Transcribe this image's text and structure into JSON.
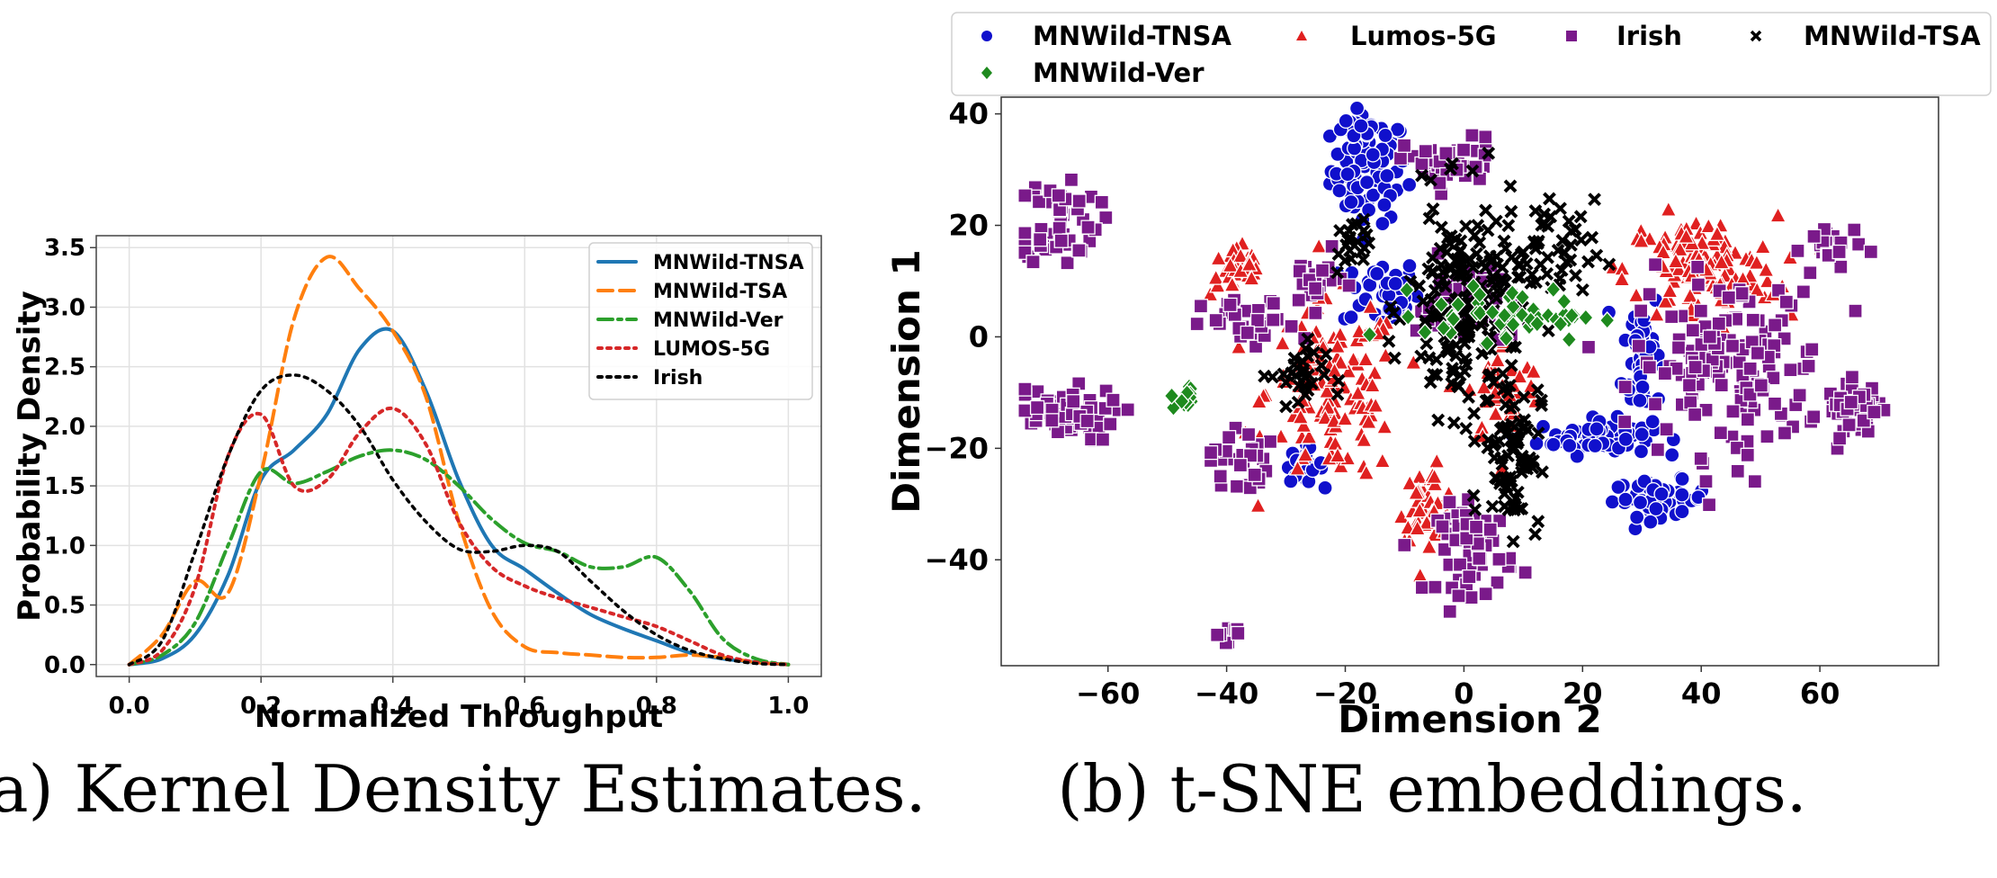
{
  "chart_data": [
    {
      "type": "line",
      "panel": "a",
      "caption": "(a) Kernel Density Estimates.",
      "xlabel": "Normalized Throughput",
      "ylabel": "Probability Density",
      "xlim": [
        -0.05,
        1.05
      ],
      "ylim": [
        -0.1,
        3.6
      ],
      "xticks": [
        0.0,
        0.2,
        0.4,
        0.6,
        0.8,
        1.0
      ],
      "xtick_labels": [
        "0.0",
        "0.2",
        "0.4",
        "0.6",
        "0.8",
        "1.0"
      ],
      "yticks": [
        0.0,
        0.5,
        1.0,
        1.5,
        2.0,
        2.5,
        3.0,
        3.5
      ],
      "ytick_labels": [
        "0.0",
        "0.5",
        "1.0",
        "1.5",
        "2.0",
        "2.5",
        "3.0",
        "3.5"
      ],
      "grid": true,
      "legend_position": "top-right",
      "series": [
        {
          "name": "MNWild-TNSA",
          "color": "#1f77b4",
          "style": "solid",
          "x": [
            0.0,
            0.05,
            0.1,
            0.15,
            0.2,
            0.25,
            0.3,
            0.35,
            0.4,
            0.45,
            0.5,
            0.55,
            0.6,
            0.65,
            0.7,
            0.75,
            0.8,
            0.85,
            0.9,
            0.95,
            1.0
          ],
          "y": [
            0.0,
            0.05,
            0.25,
            0.75,
            1.55,
            1.8,
            2.1,
            2.65,
            2.8,
            2.3,
            1.55,
            1.0,
            0.8,
            0.6,
            0.42,
            0.3,
            0.2,
            0.1,
            0.05,
            0.02,
            0.0
          ]
        },
        {
          "name": "MNWild-TSA",
          "color": "#ff7f0e",
          "style": "dashed",
          "x": [
            0.0,
            0.05,
            0.1,
            0.15,
            0.2,
            0.25,
            0.3,
            0.35,
            0.4,
            0.45,
            0.5,
            0.55,
            0.6,
            0.65,
            0.7,
            0.75,
            0.8,
            0.85,
            0.9,
            0.95,
            1.0
          ],
          "y": [
            0.0,
            0.25,
            0.7,
            0.6,
            1.6,
            2.9,
            3.42,
            3.15,
            2.8,
            2.25,
            1.2,
            0.45,
            0.15,
            0.1,
            0.08,
            0.06,
            0.06,
            0.08,
            0.06,
            0.02,
            0.0
          ]
        },
        {
          "name": "MNWild-Ver",
          "color": "#2ca02c",
          "style": "dashdot",
          "x": [
            0.0,
            0.05,
            0.1,
            0.15,
            0.2,
            0.25,
            0.3,
            0.35,
            0.4,
            0.45,
            0.5,
            0.55,
            0.6,
            0.65,
            0.7,
            0.75,
            0.8,
            0.85,
            0.9,
            0.95,
            1.0
          ],
          "y": [
            0.0,
            0.08,
            0.35,
            1.0,
            1.62,
            1.52,
            1.62,
            1.75,
            1.8,
            1.72,
            1.5,
            1.22,
            1.02,
            0.95,
            0.82,
            0.82,
            0.9,
            0.62,
            0.22,
            0.05,
            0.0
          ]
        },
        {
          "name": "LUMOS-5G",
          "color": "#d62728",
          "style": "dotted",
          "x": [
            0.0,
            0.05,
            0.1,
            0.15,
            0.2,
            0.25,
            0.3,
            0.35,
            0.4,
            0.45,
            0.5,
            0.55,
            0.6,
            0.65,
            0.7,
            0.75,
            0.8,
            0.85,
            0.9,
            0.95,
            1.0
          ],
          "y": [
            0.0,
            0.12,
            0.65,
            1.75,
            2.1,
            1.5,
            1.55,
            1.95,
            2.15,
            1.85,
            1.2,
            0.82,
            0.66,
            0.56,
            0.48,
            0.4,
            0.32,
            0.2,
            0.08,
            0.02,
            0.0
          ]
        },
        {
          "name": "Irish",
          "color": "#000000",
          "style": "dotted",
          "x": [
            0.0,
            0.05,
            0.1,
            0.15,
            0.2,
            0.25,
            0.3,
            0.35,
            0.4,
            0.45,
            0.5,
            0.55,
            0.6,
            0.65,
            0.7,
            0.75,
            0.8,
            0.85,
            0.9,
            0.95,
            1.0
          ],
          "y": [
            0.0,
            0.2,
            0.95,
            1.75,
            2.3,
            2.43,
            2.3,
            2.0,
            1.55,
            1.2,
            0.97,
            0.95,
            1.0,
            0.95,
            0.7,
            0.45,
            0.25,
            0.12,
            0.05,
            0.01,
            0.0
          ]
        }
      ]
    },
    {
      "type": "scatter",
      "panel": "b",
      "caption": "(b) t-SNE embeddings.",
      "xlabel": "Dimension 2",
      "ylabel": "Dimension 1",
      "xlim": [
        -78,
        80
      ],
      "ylim": [
        -59,
        43
      ],
      "xticks": [
        -60,
        -40,
        -20,
        0,
        20,
        40,
        60
      ],
      "xtick_labels": [
        "−60",
        "−40",
        "−20",
        "0",
        "20",
        "40",
        "60"
      ],
      "yticks": [
        40,
        20,
        0,
        -20,
        -40
      ],
      "ytick_labels": [
        "40",
        "20",
        "0",
        "−20",
        "−40"
      ],
      "grid": false,
      "legend_position": "top",
      "series": [
        {
          "name": "MNWild-TNSA",
          "color": "#1010cc",
          "marker": "circle",
          "clusters": [
            {
              "x": -16,
              "y": 30,
              "sx": 4,
              "sy": 6,
              "n": 80
            },
            {
              "x": -18,
              "y": 37,
              "sx": 2,
              "sy": 1,
              "n": 20
            },
            {
              "x": -14,
              "y": 8,
              "sx": 4,
              "sy": 4,
              "n": 40
            },
            {
              "x": 30,
              "y": -3,
              "sx": 2,
              "sy": 8,
              "n": 50
            },
            {
              "x": 22,
              "y": -18,
              "sx": 6,
              "sy": 2,
              "n": 60
            },
            {
              "x": 33,
              "y": -29,
              "sx": 5,
              "sy": 2,
              "n": 50
            },
            {
              "x": -27,
              "y": -23,
              "sx": 2,
              "sy": 2,
              "n": 20
            }
          ]
        },
        {
          "name": "Lumos-5G",
          "color": "#e02020",
          "marker": "triangle",
          "clusters": [
            {
              "x": -38,
              "y": 12,
              "sx": 3,
              "sy": 3,
              "n": 35
            },
            {
              "x": -22,
              "y": -10,
              "sx": 7,
              "sy": 10,
              "n": 130
            },
            {
              "x": -6,
              "y": -30,
              "sx": 3,
              "sy": 4,
              "n": 40
            },
            {
              "x": 40,
              "y": 12,
              "sx": 8,
              "sy": 6,
              "n": 120
            },
            {
              "x": 7,
              "y": -10,
              "sx": 4,
              "sy": 6,
              "n": 40
            }
          ]
        },
        {
          "name": "Irish",
          "color": "#7a1a8a",
          "marker": "square",
          "clusters": [
            {
              "x": -68,
              "y": 21,
              "sx": 4,
              "sy": 5,
              "n": 50
            },
            {
              "x": -68,
              "y": -14,
              "sx": 6,
              "sy": 3,
              "n": 60
            },
            {
              "x": -38,
              "y": -22,
              "sx": 3,
              "sy": 4,
              "n": 30
            },
            {
              "x": -2,
              "y": 31,
              "sx": 5,
              "sy": 3,
              "n": 40
            },
            {
              "x": -36,
              "y": 2,
              "sx": 5,
              "sy": 3,
              "n": 30
            },
            {
              "x": 45,
              "y": -5,
              "sx": 10,
              "sy": 10,
              "n": 150
            },
            {
              "x": 2,
              "y": -38,
              "sx": 4,
              "sy": 5,
              "n": 60
            },
            {
              "x": 66,
              "y": -13,
              "sx": 3,
              "sy": 3,
              "n": 40
            },
            {
              "x": 62,
              "y": 16,
              "sx": 3,
              "sy": 3,
              "n": 20
            },
            {
              "x": -40,
              "y": -53,
              "sx": 1.5,
              "sy": 1,
              "n": 8
            },
            {
              "x": 0,
              "y": 6,
              "sx": 5,
              "sy": 5,
              "n": 40
            },
            {
              "x": -25,
              "y": 10,
              "sx": 3,
              "sy": 3,
              "n": 20
            }
          ]
        },
        {
          "name": "MNWild-TSA",
          "color": "#000000",
          "marker": "x",
          "clusters": [
            {
              "x": 0,
              "y": 5,
              "sx": 6,
              "sy": 12,
              "n": 180
            },
            {
              "x": 8,
              "y": -20,
              "sx": 3,
              "sy": 9,
              "n": 80
            },
            {
              "x": -28,
              "y": -7,
              "sx": 3,
              "sy": 4,
              "n": 30
            },
            {
              "x": -19,
              "y": 16,
              "sx": 2,
              "sy": 3,
              "n": 20
            },
            {
              "x": 14,
              "y": 15,
              "sx": 5,
              "sy": 6,
              "n": 50
            }
          ]
        },
        {
          "name": "MNWild-Ver",
          "color": "#1e8a1e",
          "marker": "diamond",
          "clusters": [
            {
              "x": -47,
              "y": -11,
              "sx": 1.5,
              "sy": 1.5,
              "n": 15
            },
            {
              "x": 8,
              "y": 4,
              "sx": 9,
              "sy": 3,
              "n": 45
            }
          ]
        }
      ]
    }
  ]
}
